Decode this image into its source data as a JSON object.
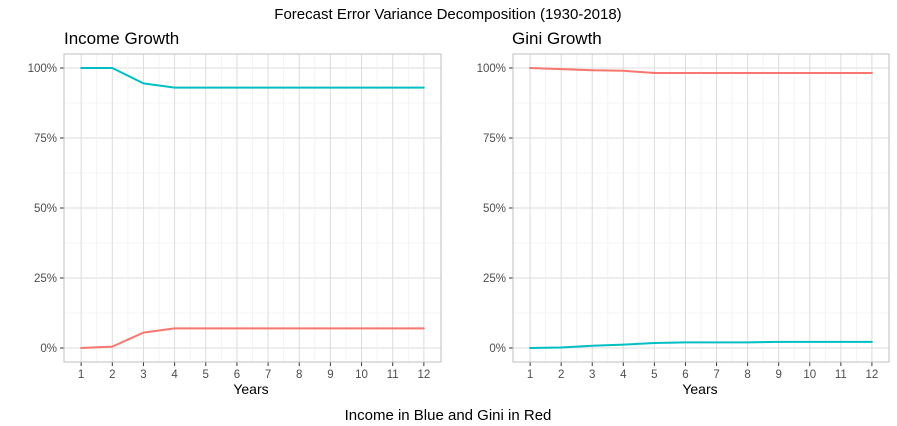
{
  "figure": {
    "title": "Forecast Error Variance Decomposition (1930-2018)",
    "caption": "Income in Blue and Gini in Red"
  },
  "chart_data": [
    {
      "type": "line",
      "title": "Income Growth",
      "xlabel": "Years",
      "ylabel": "",
      "x": [
        1,
        2,
        3,
        4,
        5,
        6,
        7,
        8,
        9,
        10,
        11,
        12
      ],
      "x_ticks": [
        "1",
        "2",
        "3",
        "4",
        "5",
        "6",
        "7",
        "8",
        "9",
        "10",
        "11",
        "12"
      ],
      "y_ticks": [
        "0%",
        "25%",
        "50%",
        "75%",
        "100%"
      ],
      "xlim": [
        0.45,
        12.55
      ],
      "ylim": [
        -0.05,
        1.05
      ],
      "grid": true,
      "legend": "none",
      "series": [
        {
          "color": "#00BFC4",
          "values": [
            1.0,
            1.0,
            0.945,
            0.93,
            0.93,
            0.93,
            0.93,
            0.93,
            0.93,
            0.93,
            0.93,
            0.93
          ]
        },
        {
          "color": "#F8766D",
          "values": [
            0.0,
            0.005,
            0.055,
            0.07,
            0.07,
            0.07,
            0.07,
            0.07,
            0.07,
            0.07,
            0.07,
            0.07
          ]
        }
      ]
    },
    {
      "type": "line",
      "title": "Gini Growth",
      "xlabel": "Years",
      "ylabel": "",
      "x": [
        1,
        2,
        3,
        4,
        5,
        6,
        7,
        8,
        9,
        10,
        11,
        12
      ],
      "x_ticks": [
        "1",
        "2",
        "3",
        "4",
        "5",
        "6",
        "7",
        "8",
        "9",
        "10",
        "11",
        "12"
      ],
      "y_ticks": [
        "0%",
        "25%",
        "50%",
        "75%",
        "100%"
      ],
      "xlim": [
        0.45,
        12.55
      ],
      "ylim": [
        -0.05,
        1.05
      ],
      "grid": true,
      "legend": "none",
      "series": [
        {
          "color": "#F8766D",
          "values": [
            1.0,
            0.996,
            0.992,
            0.99,
            0.982,
            0.982,
            0.982,
            0.982,
            0.982,
            0.982,
            0.982,
            0.982
          ]
        },
        {
          "color": "#00BFC4",
          "values": [
            0.0,
            0.002,
            0.008,
            0.012,
            0.018,
            0.02,
            0.02,
            0.02,
            0.022,
            0.022,
            0.022,
            0.022
          ]
        }
      ]
    }
  ]
}
